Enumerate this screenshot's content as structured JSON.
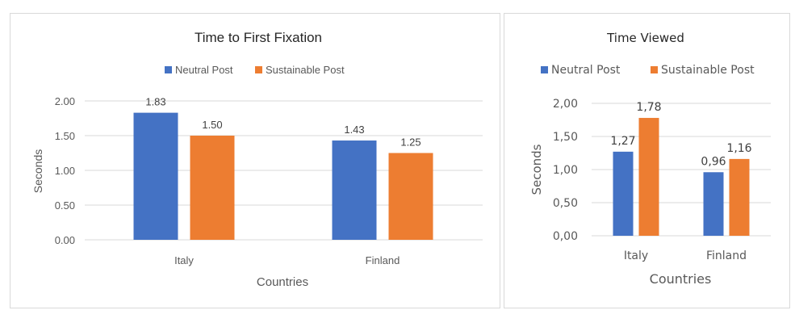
{
  "colors": {
    "neutral": "#4472c4",
    "sustainable": "#ed7d31",
    "grid": "#d9d9d9",
    "text": "#595959"
  },
  "chart_data": [
    {
      "type": "bar",
      "title": "Time to First Fixation",
      "xlabel": "Countries",
      "ylabel": "Seconds",
      "categories": [
        "Italy",
        "Finland"
      ],
      "series": [
        {
          "name": "Neutral Post",
          "values": [
            1.83,
            1.43
          ],
          "labels": [
            "1.83",
            "1.43"
          ]
        },
        {
          "name": "Sustainable Post",
          "values": [
            1.5,
            1.25
          ],
          "labels": [
            "1.50",
            "1.25"
          ]
        }
      ],
      "ylim": [
        0,
        2
      ],
      "yticks": [
        0,
        0.5,
        1,
        1.5,
        2
      ],
      "ytick_labels": [
        "0.00",
        "0.50",
        "1.00",
        "1.50",
        "2.00"
      ],
      "grid": true,
      "legend": "top"
    },
    {
      "type": "bar",
      "title": "Time Viewed",
      "xlabel": "Countries",
      "ylabel": "Seconds",
      "categories": [
        "Italy",
        "Finland"
      ],
      "series": [
        {
          "name": "Neutral Post",
          "values": [
            1.27,
            0.96
          ],
          "labels": [
            "1,27",
            "0,96"
          ]
        },
        {
          "name": "Sustainable Post",
          "values": [
            1.78,
            1.16
          ],
          "labels": [
            "1,78",
            "1,16"
          ]
        }
      ],
      "ylim": [
        0,
        2
      ],
      "yticks": [
        0,
        0.5,
        1,
        1.5,
        2
      ],
      "ytick_labels": [
        "0,00",
        "0,50",
        "1,00",
        "1,50",
        "2,00"
      ],
      "grid": true,
      "legend": "top"
    }
  ]
}
